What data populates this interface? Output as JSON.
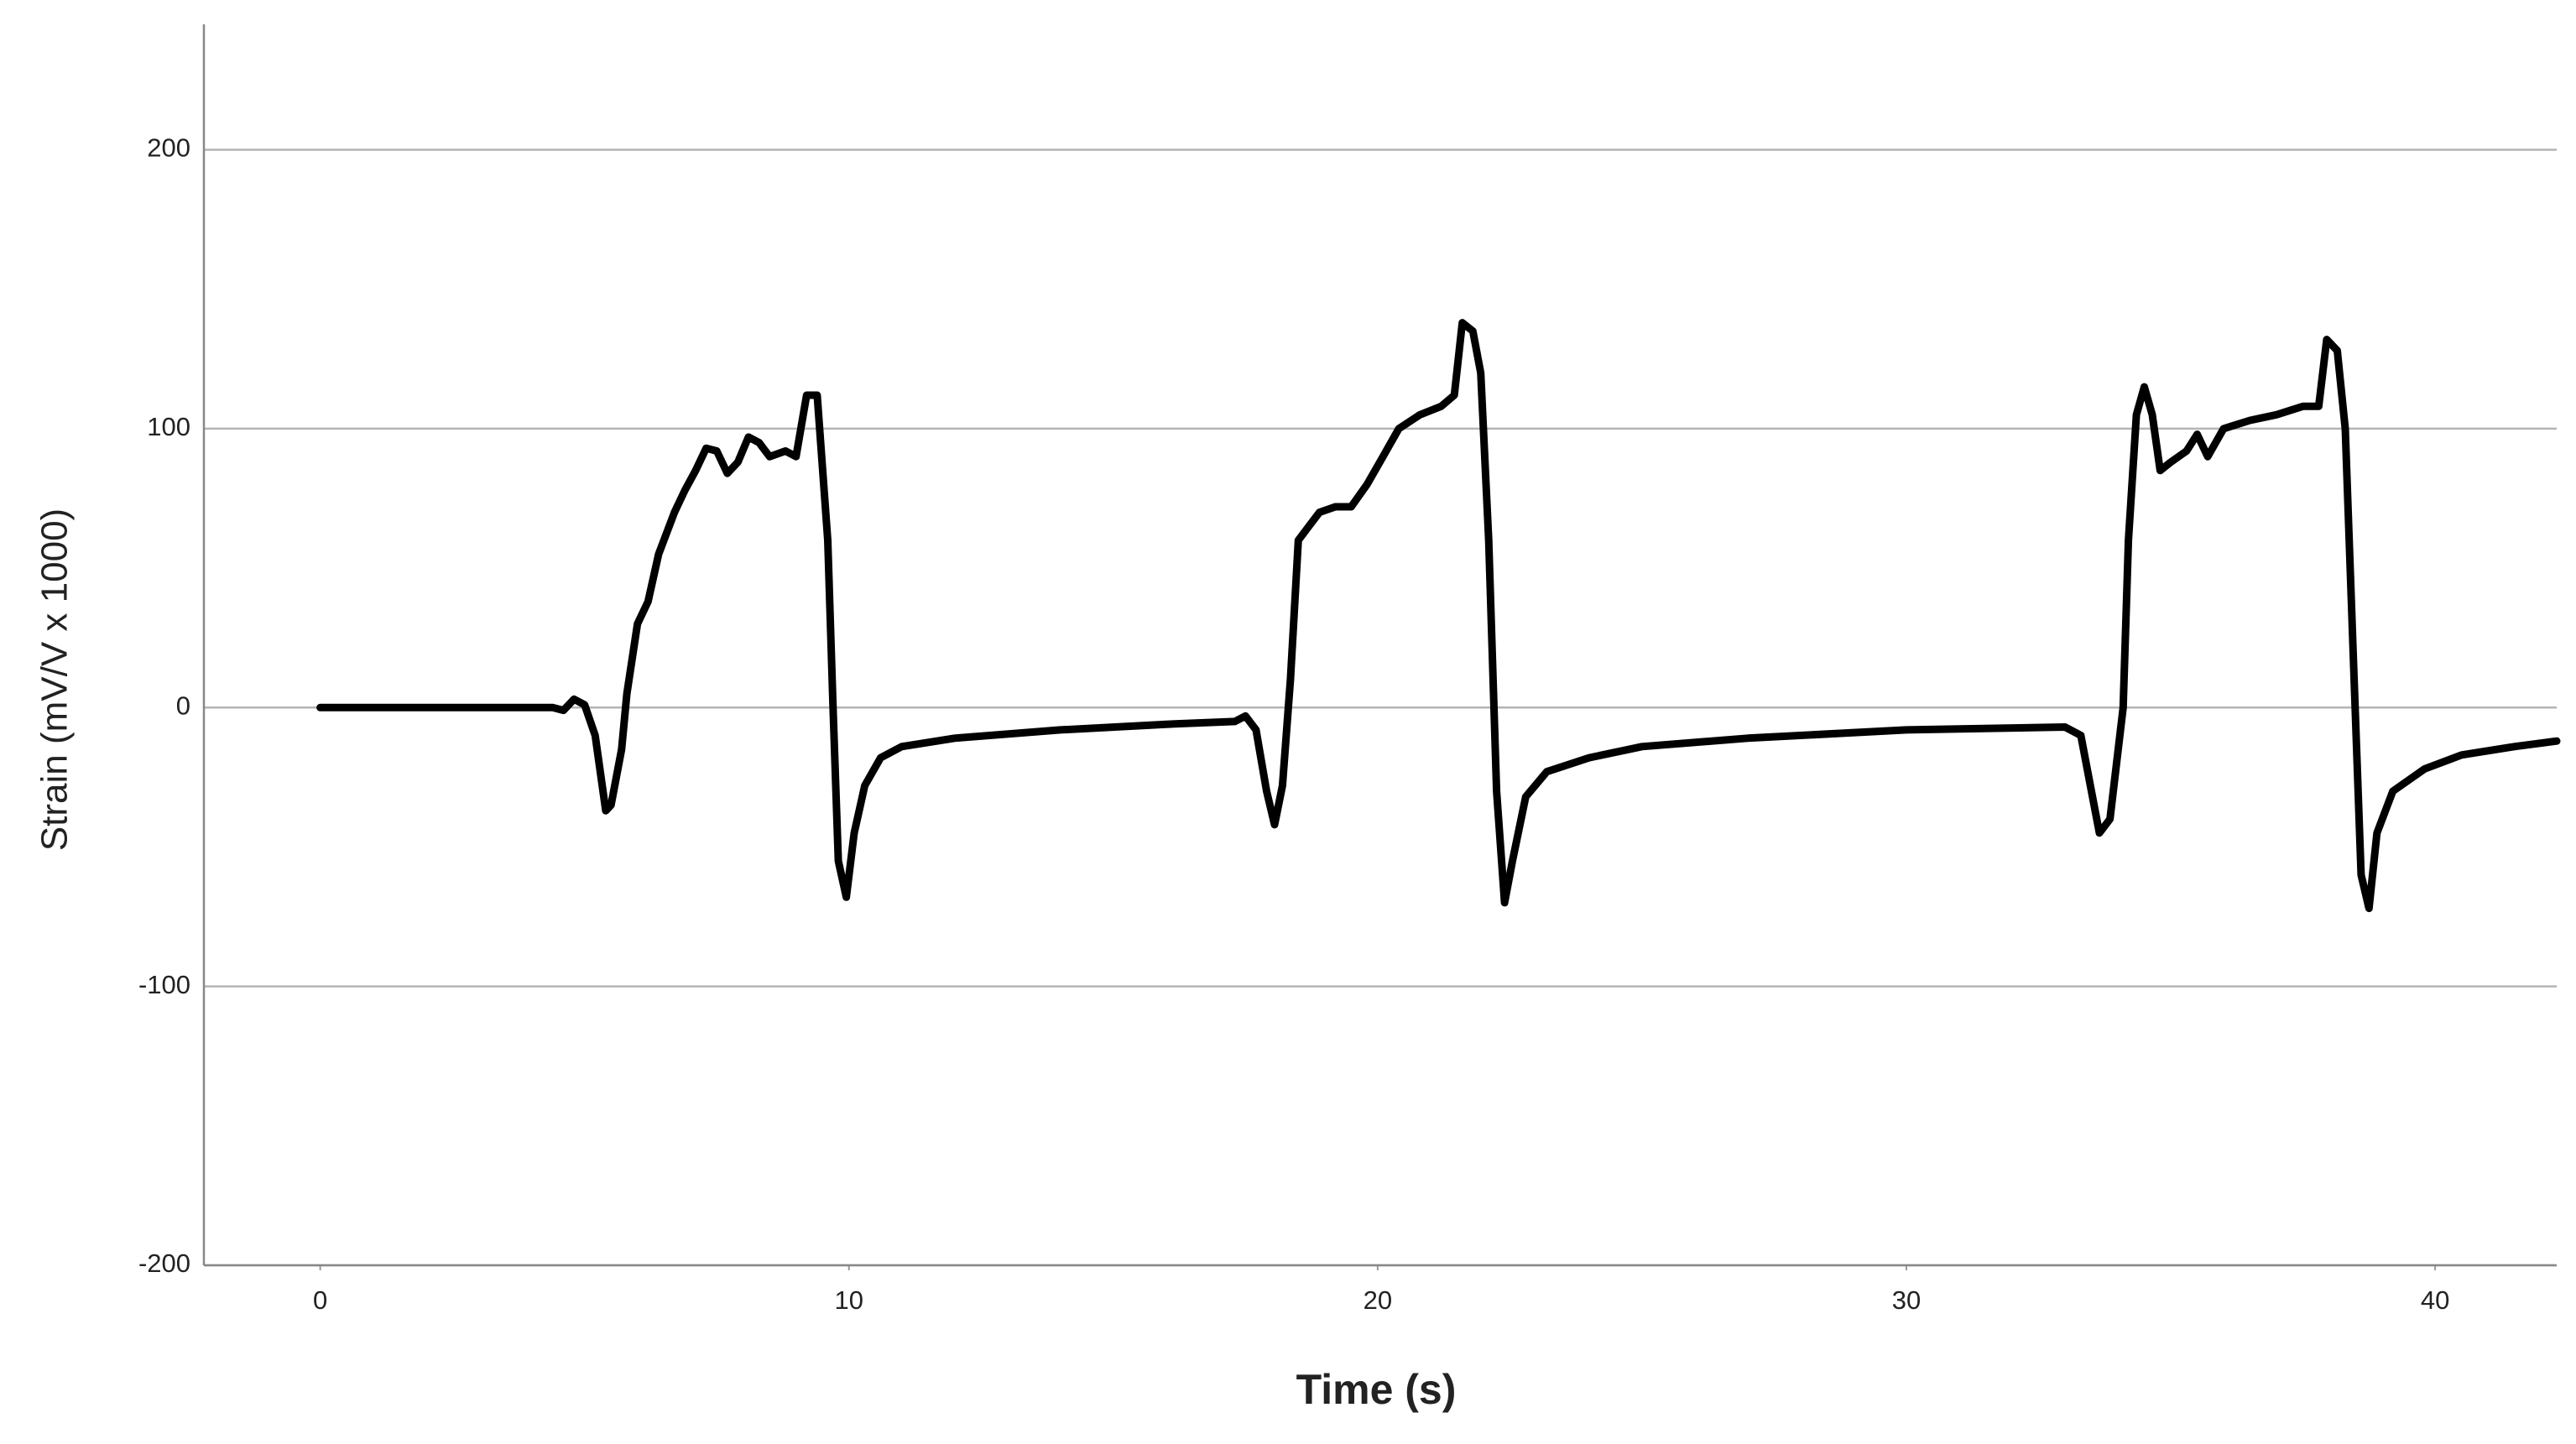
{
  "chart_data": {
    "type": "line",
    "x_label": "Time (s)",
    "y_label": "Strain (mV/V x 1000)",
    "x": [
      0,
      4.4,
      4.6,
      4.8,
      5.0,
      5.2,
      5.4,
      5.5,
      5.7,
      5.8,
      6.0,
      6.2,
      6.4,
      6.7,
      6.9,
      7.1,
      7.3,
      7.5,
      7.7,
      7.9,
      8.1,
      8.3,
      8.5,
      8.8,
      9.0,
      9.2,
      9.4,
      9.6,
      9.7,
      9.8,
      9.95,
      10.1,
      10.3,
      10.6,
      11,
      12,
      14,
      16,
      17.3,
      17.5,
      17.7,
      17.9,
      18.05,
      18.2,
      18.35,
      18.5,
      18.7,
      18.9,
      19.2,
      19.5,
      19.8,
      20.1,
      20.4,
      20.8,
      21.2,
      21.45,
      21.6,
      21.8,
      21.95,
      22.1,
      22.25,
      22.4,
      22.55,
      22.8,
      23.2,
      24,
      25,
      27,
      30,
      33,
      33.3,
      33.5,
      33.65,
      33.85,
      34.1,
      34.2,
      34.35,
      34.5,
      34.65,
      34.8,
      35.0,
      35.3,
      35.5,
      35.7,
      36,
      36.5,
      37,
      37.5,
      37.8,
      37.95,
      38.15,
      38.3,
      38.45,
      38.6,
      38.75,
      38.9,
      39.2,
      39.8,
      40.5,
      41.5,
      42.3
    ],
    "values": [
      0,
      0,
      -1,
      3,
      1,
      -10,
      -37,
      -35,
      -15,
      5,
      30,
      38,
      55,
      70,
      78,
      85,
      93,
      92,
      84,
      88,
      97,
      95,
      90,
      92,
      90,
      112,
      112,
      60,
      0,
      -55,
      -68,
      -45,
      -28,
      -18,
      -14,
      -11,
      -8,
      -6,
      -5,
      -3,
      -8,
      -30,
      -42,
      -28,
      10,
      60,
      65,
      70,
      72,
      72,
      80,
      90,
      100,
      105,
      108,
      112,
      138,
      135,
      120,
      60,
      -30,
      -70,
      -55,
      -32,
      -23,
      -18,
      -14,
      -11,
      -8,
      -7,
      -10,
      -30,
      -45,
      -40,
      0,
      60,
      105,
      115,
      105,
      85,
      88,
      92,
      98,
      90,
      100,
      103,
      105,
      108,
      108,
      132,
      128,
      100,
      20,
      -60,
      -72,
      -45,
      -30,
      -22,
      -17,
      -14,
      -12
    ],
    "color": "#000000",
    "xlim": [
      -2.2,
      42.3
    ],
    "ylim": [
      -200,
      245
    ],
    "xticks": [
      0,
      10,
      20,
      30,
      40
    ],
    "yticks": [
      -200,
      -100,
      0,
      100,
      200
    ],
    "grid": true
  }
}
